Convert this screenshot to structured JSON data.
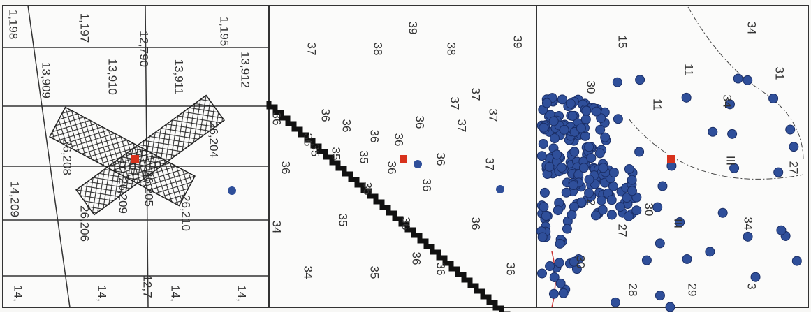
{
  "panels": [
    {
      "labels": [
        "1,198",
        "1,197",
        "12,790",
        "1,195",
        "13,909",
        "13,910",
        "13,911",
        "13,912",
        "26,204",
        "26,208",
        "26,209",
        "26,205",
        "26,210",
        "26,206",
        "14,209",
        "14,",
        "14,",
        "12,7",
        "14,",
        "14,"
      ]
    },
    {
      "labels": [
        "37",
        "38",
        "39",
        "38",
        "39",
        "37",
        "37",
        "37",
        "37",
        "36",
        "36",
        "36",
        "36",
        "36",
        "36",
        "36",
        "36",
        "36",
        "36",
        "36",
        "37",
        "35",
        "35",
        "35",
        "35",
        "35",
        "35",
        "34",
        "34",
        "36",
        "36",
        "36",
        "36",
        "36"
      ]
    },
    {
      "labels": [
        "15",
        "11",
        "34",
        "31",
        "30",
        "34",
        "11",
        "III",
        "27",
        "30",
        "III",
        "34",
        "27",
        "30",
        "28",
        "29",
        "3",
        "2"
      ]
    }
  ]
}
